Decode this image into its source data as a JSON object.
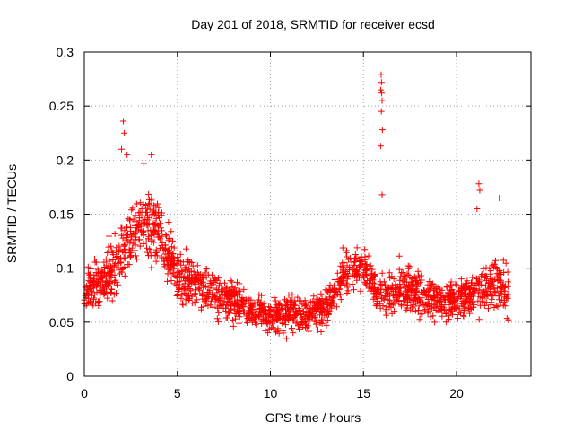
{
  "chart_data": {
    "type": "scatter",
    "title": "Day 201 of 2018, SRMTID for receiver ecsd",
    "xlabel": "GPS time / hours",
    "ylabel": "SRMTID / TECUs",
    "xlim": [
      0,
      24
    ],
    "ylim": [
      0,
      0.3
    ],
    "xticks": [
      "0",
      "5",
      "10",
      "15",
      "20"
    ],
    "yticks": [
      "0",
      "0.05",
      "0.1",
      "0.15",
      "0.2",
      "0.25",
      "0.3"
    ],
    "grid": true,
    "marker": "+",
    "marker_color": "#ff0000",
    "series": [
      {
        "name": "SRMTID",
        "note": "approximately 2000 red '+' markers spanning 0 to ~22.8 hours; below is a representative trend of the point cloud (hour, typical value, spread)",
        "trend": [
          [
            0.0,
            0.08,
            0.025
          ],
          [
            1.0,
            0.085,
            0.03
          ],
          [
            2.0,
            0.115,
            0.035
          ],
          [
            3.0,
            0.14,
            0.035
          ],
          [
            4.0,
            0.135,
            0.035
          ],
          [
            5.0,
            0.095,
            0.03
          ],
          [
            6.0,
            0.085,
            0.03
          ],
          [
            7.0,
            0.075,
            0.025
          ],
          [
            8.0,
            0.07,
            0.025
          ],
          [
            9.0,
            0.062,
            0.02
          ],
          [
            10.0,
            0.055,
            0.02
          ],
          [
            11.0,
            0.058,
            0.02
          ],
          [
            12.0,
            0.058,
            0.02
          ],
          [
            13.0,
            0.065,
            0.02
          ],
          [
            14.0,
            0.095,
            0.025
          ],
          [
            15.0,
            0.1,
            0.025
          ],
          [
            16.0,
            0.072,
            0.022
          ],
          [
            17.0,
            0.08,
            0.028
          ],
          [
            18.0,
            0.075,
            0.028
          ],
          [
            19.0,
            0.068,
            0.025
          ],
          [
            20.0,
            0.07,
            0.025
          ],
          [
            21.0,
            0.078,
            0.028
          ],
          [
            22.0,
            0.085,
            0.03
          ],
          [
            22.8,
            0.08,
            0.03
          ]
        ],
        "spikes": [
          [
            2.1,
            0.236
          ],
          [
            2.15,
            0.225
          ],
          [
            2.0,
            0.21
          ],
          [
            2.3,
            0.205
          ],
          [
            3.6,
            0.205
          ],
          [
            3.2,
            0.197
          ],
          [
            15.95,
            0.279
          ],
          [
            15.97,
            0.272
          ],
          [
            15.93,
            0.265
          ],
          [
            15.98,
            0.262
          ],
          [
            16.0,
            0.255
          ],
          [
            15.96,
            0.245
          ],
          [
            16.02,
            0.228
          ],
          [
            15.92,
            0.213
          ],
          [
            16.0,
            0.168
          ],
          [
            21.2,
            0.178
          ],
          [
            21.25,
            0.172
          ],
          [
            22.3,
            0.165
          ],
          [
            21.1,
            0.155
          ]
        ]
      }
    ]
  }
}
